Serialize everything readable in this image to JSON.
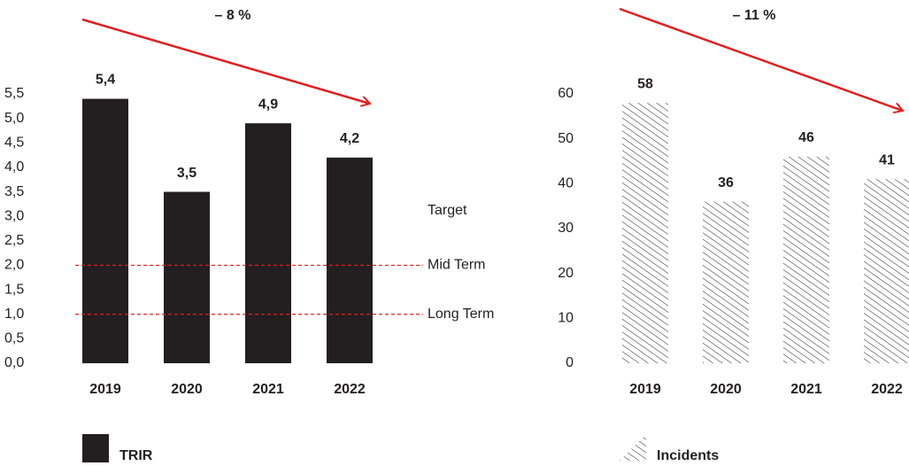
{
  "chart_data": [
    {
      "type": "bar",
      "annotation": "– 8 %",
      "categories": [
        "2019",
        "2020",
        "2021",
        "2022"
      ],
      "series": [
        {
          "name": "TRIR",
          "color": "#231f20",
          "values": [
            5.4,
            3.5,
            4.9,
            4.2
          ],
          "value_labels": [
            "5,4",
            "3,5",
            "4,9",
            "4,2"
          ]
        }
      ],
      "ylim": [
        0,
        5.5
      ],
      "yticks": [
        {
          "value": 0,
          "label": "0,0"
        },
        {
          "value": 0.5,
          "label": "0,5"
        },
        {
          "value": 1,
          "label": "1,0"
        },
        {
          "value": 1.5,
          "label": "1,5"
        },
        {
          "value": 2,
          "label": "2,0"
        },
        {
          "value": 2.5,
          "label": "2,5"
        },
        {
          "value": 3,
          "label": "3,0"
        },
        {
          "value": 3.5,
          "label": "3,5"
        },
        {
          "value": 4,
          "label": "4,0"
        },
        {
          "value": 4.5,
          "label": "4,5"
        },
        {
          "value": 5,
          "label": "5,0"
        },
        {
          "value": 5.5,
          "label": "5,5"
        }
      ],
      "reference_title": "Target",
      "reference_lines": [
        {
          "value": 2,
          "label": "Mid Term",
          "color": "#e02020"
        },
        {
          "value": 1,
          "label": "Long Term",
          "color": "#e02020"
        }
      ]
    },
    {
      "type": "bar",
      "annotation": "– 11 %",
      "categories": [
        "2019",
        "2020",
        "2021",
        "2022"
      ],
      "series": [
        {
          "name": "Incidents",
          "color": "#231f20",
          "pattern": "hatch",
          "values": [
            58,
            36,
            46,
            41
          ]
        }
      ],
      "ylim": [
        0,
        60
      ],
      "yticks": [
        0,
        10,
        20,
        30,
        40,
        50,
        60
      ]
    }
  ]
}
